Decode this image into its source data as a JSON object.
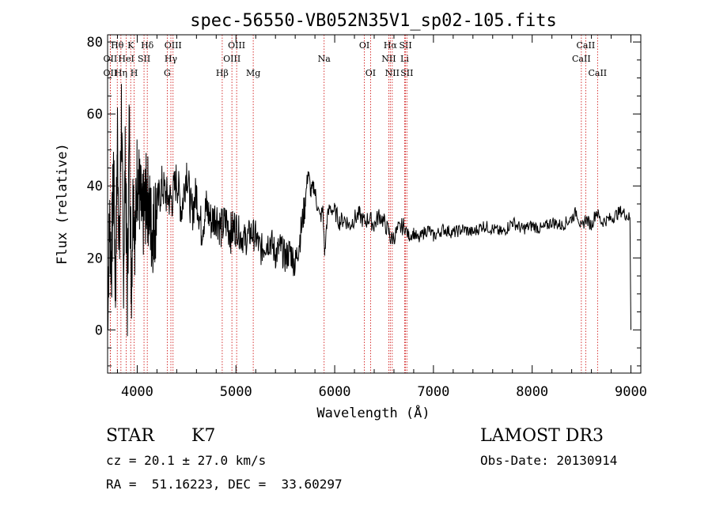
{
  "chart_data": {
    "type": "line",
    "title": "spec-56550-VB052N35V1_sp02-105.fits",
    "xlabel": "Wavelength (Å)",
    "ylabel": "Flux (relative)",
    "xlim": [
      3700,
      9100
    ],
    "ylim": [
      -12,
      82
    ],
    "x_ticks": [
      4000,
      5000,
      6000,
      7000,
      8000,
      9000
    ],
    "x_tick_labels": [
      "4000",
      "5000",
      "6000",
      "7000",
      "8000",
      "9000"
    ],
    "y_ticks": [
      0,
      20,
      40,
      60,
      80
    ],
    "y_tick_labels": [
      "0",
      "20",
      "40",
      "60",
      "80"
    ],
    "series": [
      {
        "name": "spectrum",
        "color": "#000000",
        "x": [
          3700,
          3720,
          3740,
          3760,
          3780,
          3800,
          3820,
          3840,
          3860,
          3880,
          3900,
          3920,
          3940,
          3960,
          3980,
          4000,
          4050,
          4100,
          4150,
          4200,
          4250,
          4300,
          4350,
          4400,
          4450,
          4500,
          4550,
          4600,
          4650,
          4700,
          4750,
          4800,
          4850,
          4900,
          4950,
          5000,
          5050,
          5100,
          5150,
          5200,
          5250,
          5300,
          5350,
          5400,
          5450,
          5500,
          5550,
          5600,
          5650,
          5700,
          5730,
          5760,
          5790,
          5820,
          5850,
          5880,
          5900,
          5920,
          5950,
          6000,
          6050,
          6100,
          6150,
          6200,
          6250,
          6300,
          6350,
          6400,
          6450,
          6500,
          6550,
          6570,
          6600,
          6650,
          6700,
          6750,
          6800,
          6850,
          6900,
          6950,
          7000,
          7100,
          7200,
          7300,
          7400,
          7500,
          7600,
          7700,
          7800,
          7900,
          8000,
          8100,
          8200,
          8300,
          8400,
          8450,
          8500,
          8540,
          8600,
          8650,
          8700,
          8800,
          8900,
          8950,
          8990,
          9000
        ],
        "values": [
          5,
          30,
          18,
          45,
          10,
          55,
          20,
          62,
          15,
          48,
          8,
          58,
          12,
          40,
          25,
          45,
          30,
          38,
          27,
          34,
          40,
          37,
          36,
          42,
          33,
          45,
          32,
          38,
          28,
          34,
          30,
          32,
          28,
          30,
          27,
          29,
          26,
          25,
          27,
          26,
          22,
          24,
          25,
          21,
          23,
          20,
          22,
          18,
          26,
          35,
          44,
          38,
          40,
          35,
          31,
          33,
          21,
          30,
          34,
          33,
          30,
          31,
          29,
          31,
          32,
          30,
          31,
          29,
          32,
          30,
          27,
          25,
          26,
          28,
          29,
          26,
          27,
          25,
          27,
          28,
          26,
          28,
          27,
          28,
          27,
          29,
          28,
          27,
          30,
          28,
          29,
          28,
          30,
          29,
          31,
          33,
          28,
          31,
          29,
          33,
          30,
          31,
          33,
          32,
          31,
          0
        ]
      }
    ],
    "line_markers": [
      {
        "label": "OII",
        "wavelength": 3727,
        "row": 2
      },
      {
        "label": "Hθ",
        "wavelength": 3798,
        "row": 1
      },
      {
        "label": "OII",
        "wavelength": 3727,
        "row": 3
      },
      {
        "label": "HeI",
        "wavelength": 3889,
        "row": 2
      },
      {
        "label": "Hη",
        "wavelength": 3835,
        "row": 3
      },
      {
        "label": "K",
        "wavelength": 3934,
        "row": 1
      },
      {
        "label": "H",
        "wavelength": 3969,
        "row": 3
      },
      {
        "label": "SII",
        "wavelength": 4069,
        "row": 2
      },
      {
        "label": "Hδ",
        "wavelength": 4102,
        "row": 1
      },
      {
        "label": "OIII",
        "wavelength": 4363,
        "row": 1
      },
      {
        "label": "Hγ",
        "wavelength": 4341,
        "row": 2
      },
      {
        "label": "G",
        "wavelength": 4304,
        "row": 3
      },
      {
        "label": "OIII",
        "wavelength": 5007,
        "row": 1
      },
      {
        "label": "OIII",
        "wavelength": 4959,
        "row": 2
      },
      {
        "label": "Hβ",
        "wavelength": 4861,
        "row": 3
      },
      {
        "label": "Mg",
        "wavelength": 5175,
        "row": 3
      },
      {
        "label": "Na",
        "wavelength": 5893,
        "row": 2
      },
      {
        "label": "OI",
        "wavelength": 6300,
        "row": 1
      },
      {
        "label": "OI",
        "wavelength": 6363,
        "row": 3
      },
      {
        "label": "Hα",
        "wavelength": 6563,
        "row": 1
      },
      {
        "label": "NII",
        "wavelength": 6548,
        "row": 2
      },
      {
        "label": "NII",
        "wavelength": 6583,
        "row": 3
      },
      {
        "label": "SII",
        "wavelength": 6717,
        "row": 1
      },
      {
        "label": "Li",
        "wavelength": 6708,
        "row": 2
      },
      {
        "label": "SII",
        "wavelength": 6731,
        "row": 3
      },
      {
        "label": "CaII",
        "wavelength": 8542,
        "row": 1
      },
      {
        "label": "CaII",
        "wavelength": 8498,
        "row": 2
      },
      {
        "label": "CaII",
        "wavelength": 8662,
        "row": 3
      }
    ],
    "marker_color": "#cc0000",
    "legend": "none",
    "grid": false
  },
  "info": {
    "star_label": "STAR",
    "spectral_type": "K7",
    "survey": "LAMOST DR3",
    "cz": "cz = 20.1 ± 27.0 km/s",
    "obs_date": "Obs-Date: 20130914",
    "coords": "RA =  51.16223, DEC =  33.60297"
  }
}
